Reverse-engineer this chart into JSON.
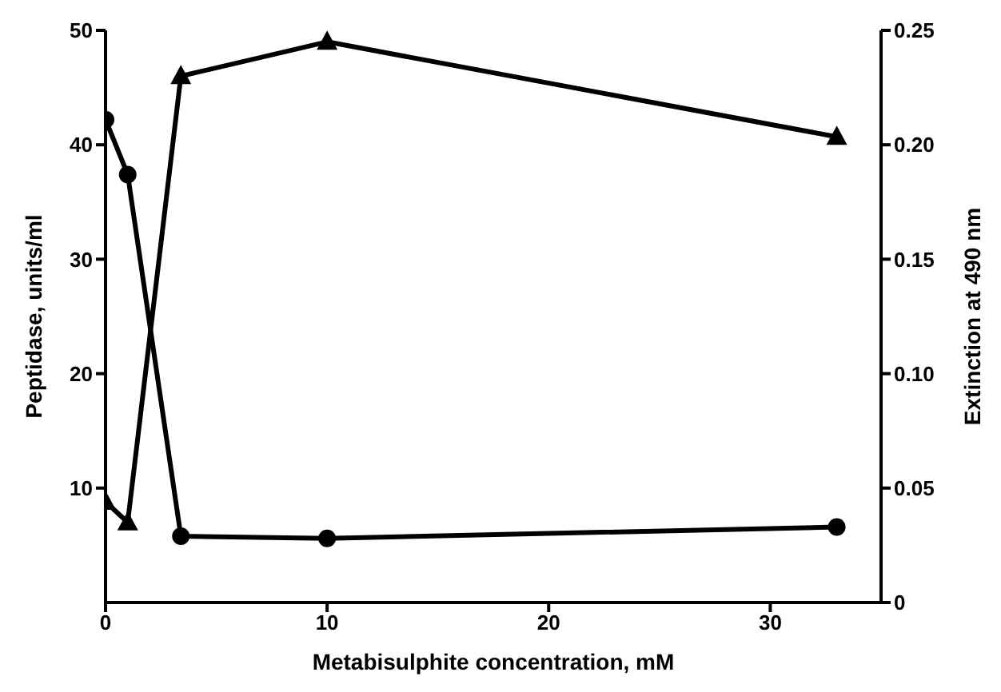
{
  "chart_data": {
    "type": "line",
    "xlabel": "Metabisulphite concentration, mM",
    "ylabel": "Peptidase, units/ml",
    "y2label": "Extinction at 490 nm",
    "xlim": [
      0,
      35
    ],
    "xticks": [
      0,
      10,
      20,
      30
    ],
    "ylim": [
      0,
      50
    ],
    "yticks": [
      10,
      20,
      30,
      40,
      50
    ],
    "y2lim": [
      0,
      0.25
    ],
    "y2ticks": [
      0,
      {
        "value": 0.05,
        "label": "0.05"
      },
      {
        "value": 0.1,
        "label": "0.10"
      },
      {
        "value": 0.15,
        "label": "0.15"
      },
      {
        "value": 0.2,
        "label": "0.20"
      },
      {
        "value": 0.25,
        "label": "0.25"
      }
    ],
    "line_style": "solid",
    "series": [
      {
        "color": "#000000",
        "marker": "triangle",
        "axis": "y",
        "x": [
          0,
          1,
          3.4,
          10,
          33
        ],
        "values": [
          8.8,
          7,
          46,
          49,
          40.7
        ]
      },
      {
        "color": "#000000",
        "marker": "circle",
        "axis": "y2",
        "x": [
          0,
          1,
          3.4,
          10,
          33
        ],
        "values": [
          0.211,
          0.187,
          0.029,
          0.028,
          0.033
        ]
      }
    ]
  }
}
